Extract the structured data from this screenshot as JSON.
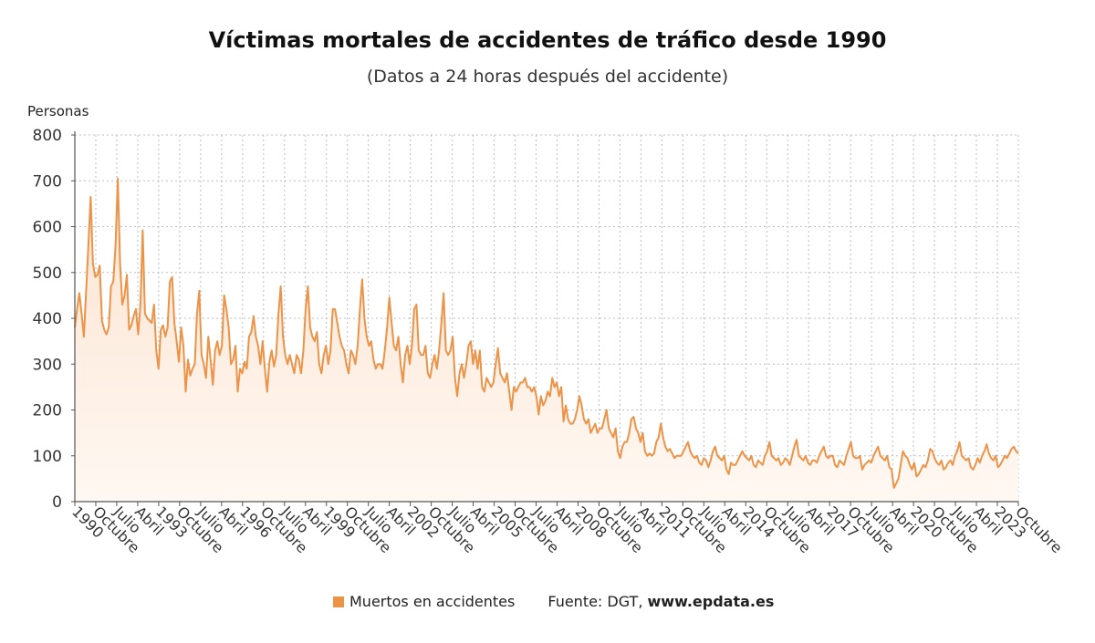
{
  "header": {
    "title": "Víctimas mortales de accidentes de tráfico desde 1990",
    "subtitle": "(Datos a 24 horas después del accidente)"
  },
  "legend": {
    "series_label": "Muertos en accidentes",
    "source_prefix": "Fuente: DGT, ",
    "source_site": "www.epdata.es"
  },
  "colors": {
    "line": "#ec9348",
    "fill_top": "#fbe3d0",
    "fill_bottom": "#fff8f2",
    "grid": "#bdbdbd",
    "axis": "#555555"
  },
  "chart_data": {
    "type": "area",
    "title": "Víctimas mortales de accidentes de tráfico desde 1990",
    "subtitle": "(Datos a 24 horas después del accidente)",
    "ylabel": "Personas",
    "xlabel": "",
    "ylim": [
      0,
      800
    ],
    "yticks": [
      0,
      100,
      200,
      300,
      400,
      500,
      600,
      700,
      800
    ],
    "grid": true,
    "legend_position": "bottom",
    "x_start": "1990-01",
    "x_end": "2024-10",
    "xtick_labels": [
      "1990",
      "Octubre",
      "Julio",
      "Abril",
      "1993",
      "Octubre",
      "Julio",
      "Abril",
      "1996",
      "Octubre",
      "Julio",
      "Abril",
      "1999",
      "Octubre",
      "Julio",
      "Abril",
      "2002",
      "Octubre",
      "Julio",
      "Abril",
      "2005",
      "Octubre",
      "Julio",
      "Abril",
      "2008",
      "Octubre",
      "Julio",
      "Abril",
      "2011",
      "Octubre",
      "Julio",
      "Abril",
      "2014",
      "Octubre",
      "Julio",
      "Abril",
      "2017",
      "Octubre",
      "Julio",
      "Abril",
      "2020",
      "Octubre",
      "Julio",
      "Abril",
      "2023",
      "Octubre"
    ],
    "series": [
      {
        "name": "Muertos en accidentes",
        "year_values": [
          [
            1990,
            [
              380,
              420,
              455,
              410,
              360,
              460,
              560,
              665,
              520,
              490,
              495,
              515
            ]
          ],
          [
            1991,
            [
              395,
              375,
              365,
              380,
              470,
              480,
              560,
              705,
              520,
              430,
              450,
              495
            ]
          ],
          [
            1992,
            [
              375,
              385,
              405,
              420,
              365,
              430,
              592,
              410,
              400,
              395,
              390,
              430
            ]
          ],
          [
            1993,
            [
              330,
              290,
              375,
              385,
              360,
              380,
              480,
              490,
              390,
              350,
              305,
              380
            ]
          ],
          [
            1994,
            [
              340,
              240,
              310,
              275,
              290,
              300,
              410,
              460,
              320,
              300,
              270,
              360
            ]
          ],
          [
            1995,
            [
              310,
              255,
              330,
              350,
              320,
              340,
              450,
              420,
              380,
              300,
              310,
              340
            ]
          ],
          [
            1996,
            [
              240,
              290,
              280,
              305,
              290,
              360,
              370,
              405,
              360,
              340,
              300,
              350
            ]
          ],
          [
            1997,
            [
              290,
              240,
              305,
              330,
              295,
              320,
              410,
              470,
              360,
              320,
              300,
              320
            ]
          ],
          [
            1998,
            [
              300,
              280,
              320,
              310,
              280,
              330,
              420,
              470,
              380,
              360,
              350,
              370
            ]
          ],
          [
            1999,
            [
              300,
              280,
              320,
              340,
              300,
              330,
              420,
              420,
              390,
              360,
              340,
              330
            ]
          ],
          [
            2000,
            [
              300,
              280,
              330,
              320,
              300,
              340,
              420,
              485,
              400,
              360,
              340,
              350
            ]
          ],
          [
            2001,
            [
              310,
              290,
              300,
              300,
              290,
              330,
              380,
              445,
              390,
              340,
              330,
              360
            ]
          ],
          [
            2002,
            [
              300,
              260,
              320,
              340,
              300,
              340,
              420,
              430,
              330,
              320,
              320,
              340
            ]
          ],
          [
            2003,
            [
              280,
              270,
              300,
              320,
              290,
              330,
              390,
              455,
              330,
              320,
              330,
              360
            ]
          ],
          [
            2004,
            [
              270,
              230,
              280,
              300,
              270,
              300,
              340,
              350,
              300,
              330,
              290,
              330
            ]
          ],
          [
            2005,
            [
              250,
              240,
              270,
              260,
              250,
              260,
              300,
              335,
              280,
              270,
              260,
              280
            ]
          ],
          [
            2006,
            [
              240,
              200,
              250,
              240,
              250,
              260,
              260,
              270,
              250,
              250,
              240,
              250
            ]
          ],
          [
            2007,
            [
              230,
              190,
              230,
              210,
              220,
              240,
              230,
              270,
              250,
              260,
              230,
              250
            ]
          ],
          [
            2008,
            [
              175,
              210,
              180,
              170,
              170,
              180,
              200,
              230,
              210,
              180,
              170,
              180
            ]
          ],
          [
            2009,
            [
              150,
              160,
              170,
              150,
              160,
              160,
              180,
              200,
              160,
              150,
              140,
              160
            ]
          ],
          [
            2010,
            [
              110,
              95,
              120,
              130,
              130,
              150,
              180,
              185,
              160,
              150,
              130,
              150
            ]
          ],
          [
            2011,
            [
              110,
              100,
              105,
              100,
              105,
              130,
              140,
              170,
              140,
              120,
              110,
              115
            ]
          ],
          [
            2012,
            [
              105,
              95,
              100,
              100,
              100,
              110,
              120,
              130,
              110,
              100,
              95,
              100
            ]
          ],
          [
            2013,
            [
              85,
              80,
              95,
              90,
              75,
              90,
              110,
              120,
              100,
              95,
              90,
              100
            ]
          ],
          [
            2014,
            [
              70,
              60,
              85,
              80,
              80,
              90,
              100,
              110,
              100,
              95,
              90,
              100
            ]
          ],
          [
            2015,
            [
              80,
              75,
              90,
              85,
              80,
              100,
              110,
              130,
              100,
              95,
              90,
              95
            ]
          ],
          [
            2016,
            [
              80,
              85,
              95,
              90,
              80,
              100,
              120,
              135,
              100,
              95,
              90,
              100
            ]
          ],
          [
            2017,
            [
              85,
              80,
              90,
              90,
              85,
              100,
              110,
              120,
              100,
              95,
              100,
              100
            ]
          ],
          [
            2018,
            [
              80,
              75,
              90,
              85,
              80,
              100,
              115,
              130,
              100,
              95,
              95,
              100
            ]
          ],
          [
            2019,
            [
              70,
              80,
              85,
              90,
              85,
              100,
              110,
              120,
              100,
              95,
              90,
              100
            ]
          ],
          [
            2020,
            [
              75,
              70,
              30,
              40,
              50,
              80,
              110,
              100,
              95,
              80,
              70,
              85
            ]
          ],
          [
            2021,
            [
              55,
              60,
              70,
              80,
              75,
              90,
              115,
              110,
              95,
              85,
              80,
              90
            ]
          ],
          [
            2022,
            [
              70,
              75,
              85,
              90,
              80,
              100,
              110,
              130,
              100,
              95,
              90,
              95
            ]
          ],
          [
            2023,
            [
              75,
              70,
              80,
              95,
              85,
              100,
              110,
              125,
              105,
              95,
              90,
              100
            ]
          ],
          [
            2024,
            [
              75,
              80,
              90,
              100,
              95,
              105,
              115,
              120,
              110,
              105
            ]
          ]
        ]
      }
    ]
  }
}
